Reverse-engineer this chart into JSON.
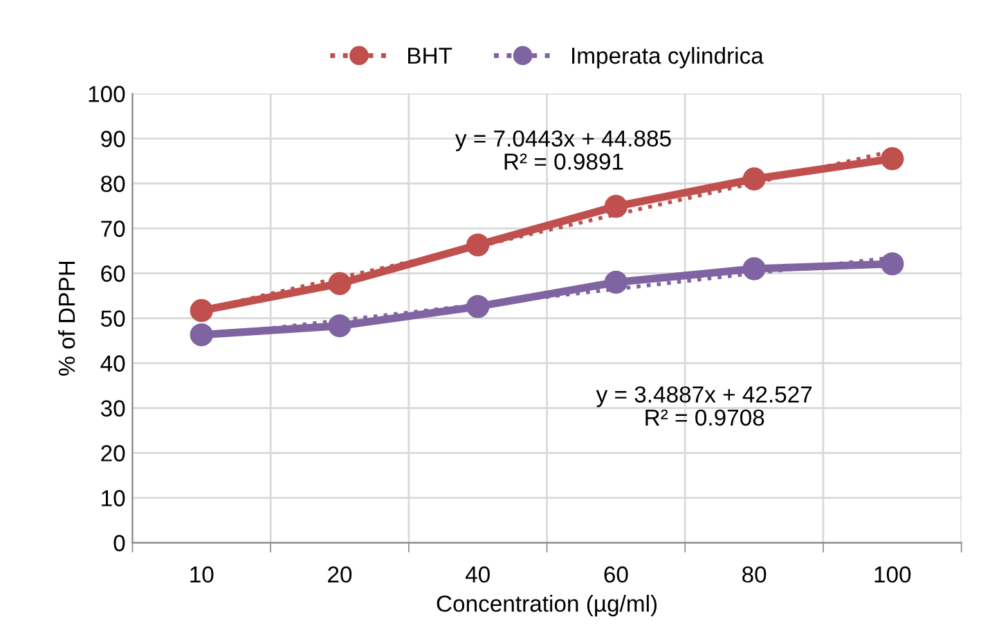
{
  "chart_data": {
    "type": "line",
    "xlabel": "Concentration (µg/ml)",
    "ylabel": "% of DPPH",
    "categories": [
      "10",
      "20",
      "40",
      "60",
      "80",
      "100"
    ],
    "series": [
      {
        "name": "BHT",
        "color": "#c0504d",
        "values": [
          51.7,
          57.7,
          66.3,
          74.9,
          81.0,
          85.5
        ],
        "marker": "circle",
        "line_style": "solid"
      },
      {
        "name": "Imperata cylindrica",
        "color": "#8064a2",
        "values": [
          46.3,
          48.3,
          52.6,
          58.0,
          61.0,
          62.1
        ],
        "marker": "circle",
        "line_style": "solid"
      },
      {
        "color": "#c0504d",
        "values": [
          51.9,
          59.0,
          66.0,
          73.1,
          80.1,
          87.2
        ],
        "marker": "none",
        "line_style": "dotted"
      },
      {
        "color": "#8064a2",
        "values": [
          46.0,
          49.5,
          53.0,
          56.5,
          60.0,
          63.5
        ],
        "marker": "none",
        "line_style": "dotted"
      }
    ],
    "annotations": [
      "y = 7.0443x + 44.885\nR² = 0.9891",
      "y = 3.4887x + 42.527\nR² = 0.9708"
    ],
    "ylim": [
      0,
      100
    ],
    "yticks": [
      0,
      10,
      20,
      30,
      40,
      50,
      60,
      70,
      80,
      90,
      100
    ],
    "grid": true,
    "legend": "top"
  }
}
